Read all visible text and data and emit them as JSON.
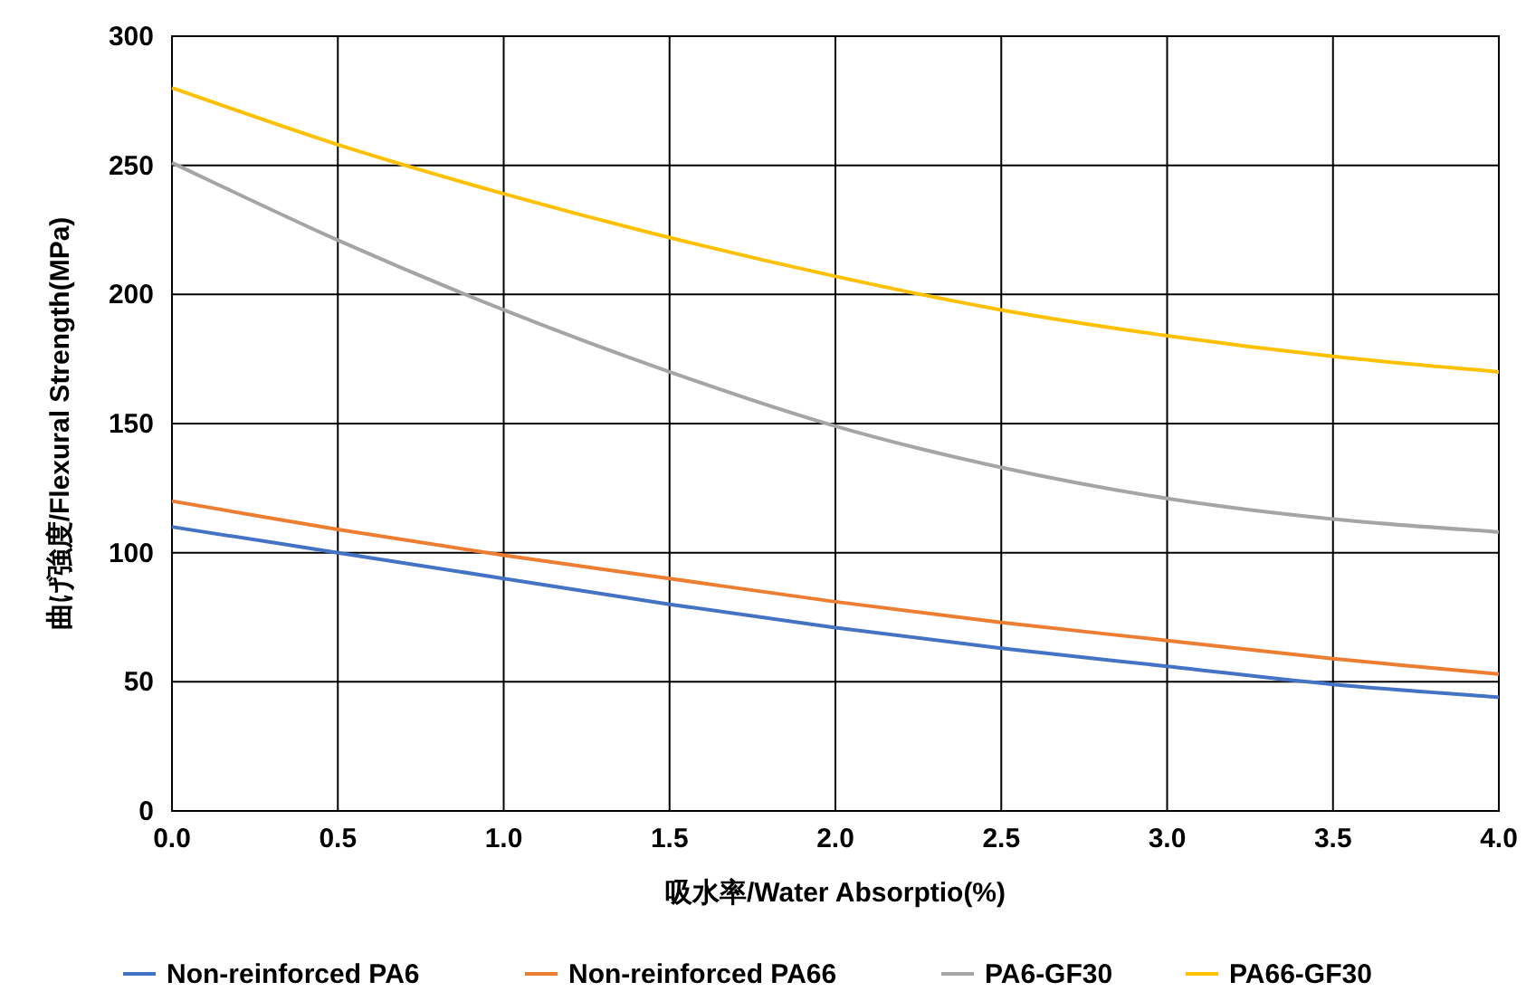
{
  "chart_data": {
    "type": "line",
    "xlabel": "吸水率/Water Absorptio(%)",
    "ylabel": "曲げ強度/Flexural Strength(MPa)",
    "x": [
      0,
      0.5,
      1,
      1.5,
      2,
      2.5,
      3,
      3.5,
      4
    ],
    "series": [
      {
        "name": "Non-reinforced PA6",
        "color": "#4472c4",
        "values": [
          110,
          100,
          90,
          80,
          71,
          63,
          56,
          49,
          44
        ]
      },
      {
        "name": "Non-reinforced PA66",
        "color": "#ed7d31",
        "values": [
          120,
          109,
          99,
          90,
          81,
          73,
          66,
          59,
          53
        ]
      },
      {
        "name": "PA6-GF30",
        "color": "#a5a5a5",
        "values": [
          251,
          221,
          194,
          170,
          149,
          133,
          121,
          113,
          108
        ]
      },
      {
        "name": "PA66-GF30",
        "color": "#ffc000",
        "values": [
          280,
          258,
          239,
          222,
          207,
          194,
          184,
          176,
          170
        ]
      }
    ],
    "xlim": [
      0,
      4
    ],
    "xticks": [
      {
        "value": 0,
        "label": "0.0"
      },
      {
        "value": 0.5,
        "label": "0.5"
      },
      {
        "value": 1,
        "label": "1.0"
      },
      {
        "value": 1.5,
        "label": "1.5"
      },
      {
        "value": 2,
        "label": "2.0"
      },
      {
        "value": 2.5,
        "label": "2.5"
      },
      {
        "value": 3,
        "label": "3.0"
      },
      {
        "value": 3.5,
        "label": "3.5"
      },
      {
        "value": 4,
        "label": "4.0"
      }
    ],
    "ylim": [
      0,
      300
    ],
    "yticks": [
      0,
      50,
      100,
      150,
      200,
      250,
      300
    ],
    "grid": true,
    "legend": "bottom",
    "marker": "none",
    "line_style": "solid"
  }
}
